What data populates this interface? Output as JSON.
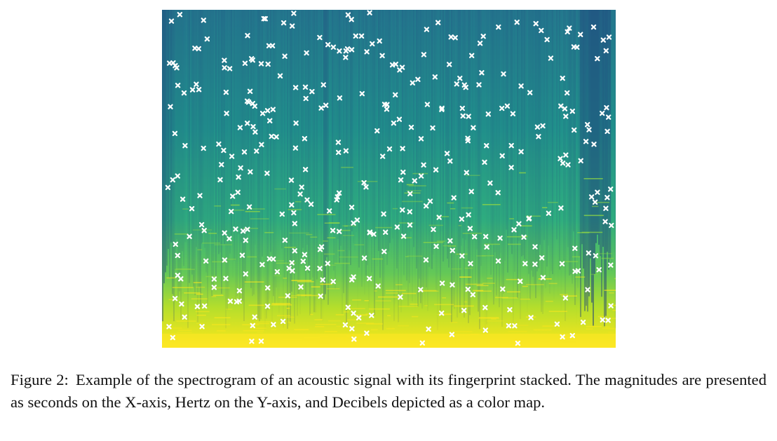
{
  "figure": {
    "label": "Figure 2:",
    "caption": "Example of the spectrogram of an acoustic signal with its fingerprint stacked.  The magnitudes are presented as seconds on the X-axis, Hertz on the Y-axis, and Decibels depicted as a color map.",
    "colormap": [
      "#2f4e88",
      "#2b6f8c",
      "#21918c",
      "#35b779",
      "#90d743",
      "#fde725"
    ],
    "marker_color": "#ffffff",
    "marker_symbol": "x"
  },
  "chart_data": {
    "type": "heatmap",
    "title": "",
    "xlabel": "",
    "ylabel": "",
    "grid": false,
    "axes_visible": false,
    "marker_count": 400
  }
}
